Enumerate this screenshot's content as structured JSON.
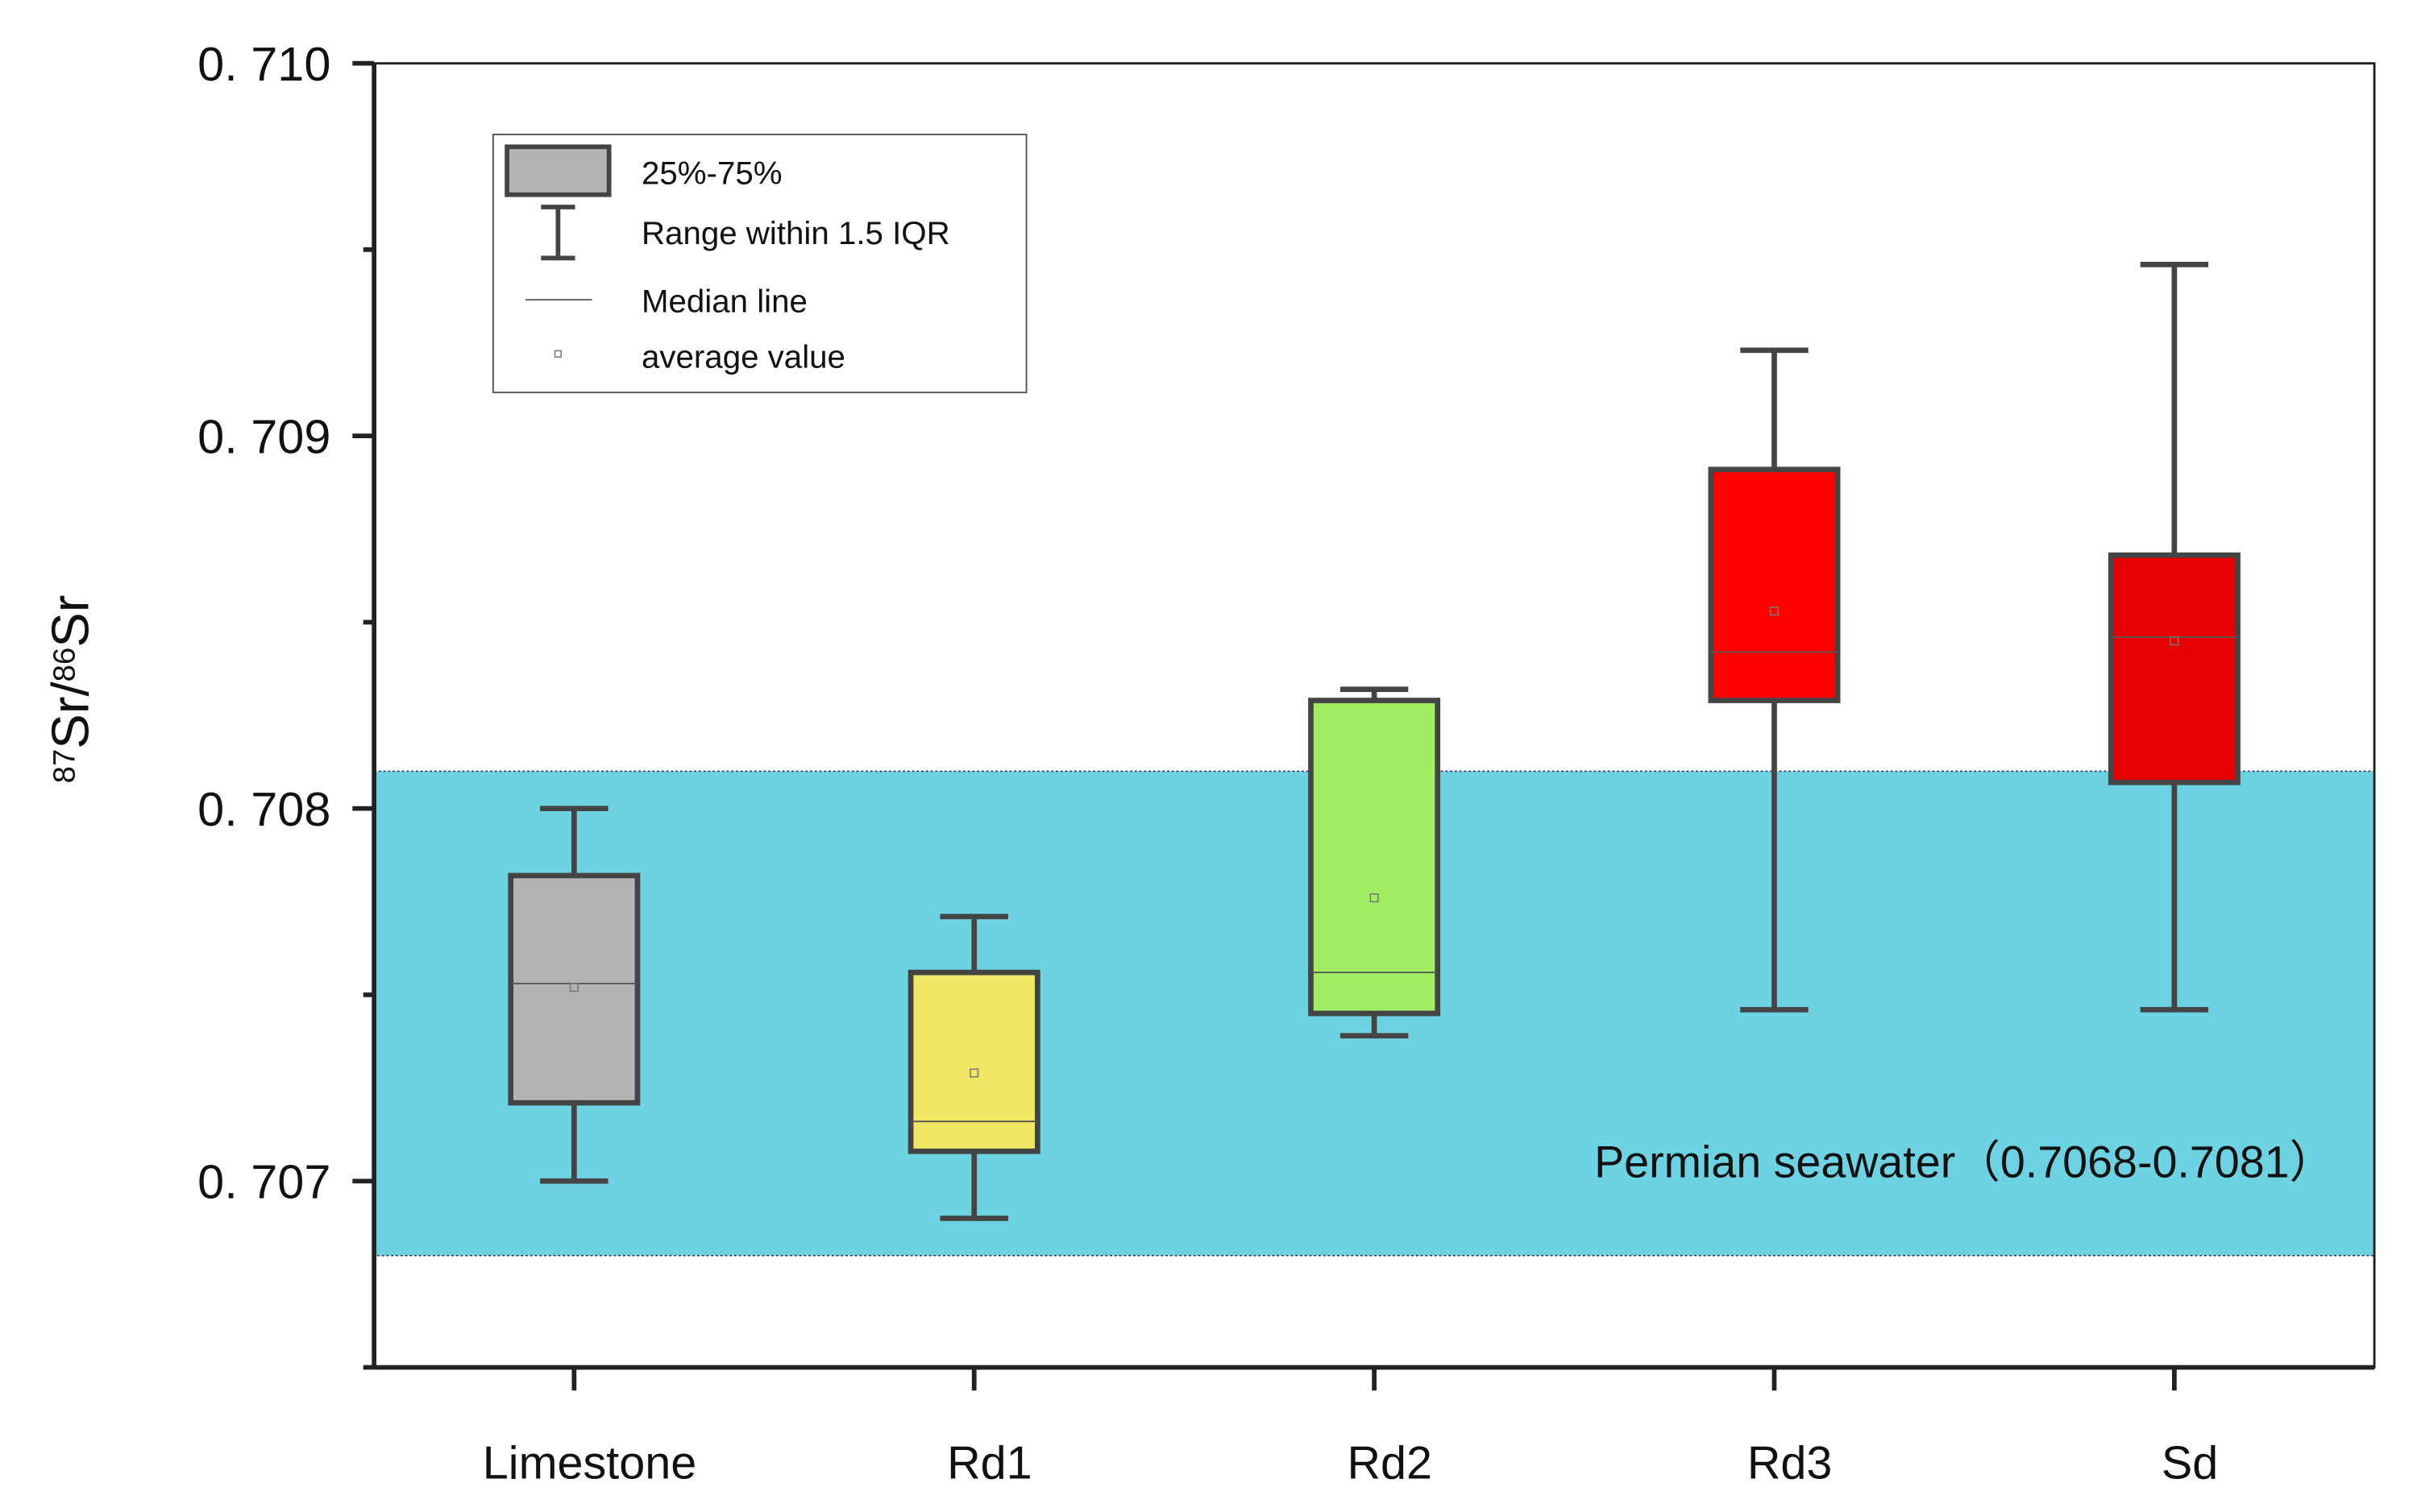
{
  "chart_data": {
    "type": "box",
    "ylabel_parts": [
      "87",
      "Sr/",
      "86",
      "Sr"
    ],
    "categories": [
      "Limestone",
      "Rd1",
      "Rd2",
      "Rd3",
      "Sd"
    ],
    "boxes": [
      {
        "whisker_low": 0.707,
        "q1": 0.70721,
        "median": 0.70753,
        "q3": 0.70782,
        "whisker_high": 0.708,
        "mean": 0.70752,
        "color": "#b3b3b3"
      },
      {
        "whisker_low": 0.7069,
        "q1": 0.70708,
        "median": 0.70716,
        "q3": 0.70756,
        "whisker_high": 0.70771,
        "mean": 0.70729,
        "color": "#f0e864"
      },
      {
        "whisker_low": 0.70739,
        "q1": 0.70745,
        "median": 0.70756,
        "q3": 0.70829,
        "whisker_high": 0.70832,
        "mean": 0.70776,
        "color": "#a2ee62"
      },
      {
        "whisker_low": 0.70746,
        "q1": 0.70829,
        "median": 0.70842,
        "q3": 0.70891,
        "whisker_high": 0.70923,
        "mean": 0.70853,
        "color": "#ff0000"
      },
      {
        "whisker_low": 0.70746,
        "q1": 0.70807,
        "median": 0.70846,
        "q3": 0.70868,
        "whisker_high": 0.70946,
        "mean": 0.70845,
        "color": "#e80000"
      }
    ],
    "band": {
      "range": [
        0.7068,
        0.7081
      ],
      "color": "#6dd3e3",
      "label": "Permian seawater（0.7068-0.7081）"
    },
    "ylim": [
      0.7065,
      0.71
    ],
    "yticks": [
      {
        "value": 0.707,
        "label": "0. 707"
      },
      {
        "value": 0.708,
        "label": "0. 708"
      },
      {
        "value": 0.709,
        "label": "0. 709"
      },
      {
        "value": 0.71,
        "label": "0. 710"
      }
    ],
    "yminorticks": [
      0.7065,
      0.7075,
      0.7085,
      0.7095
    ],
    "legend": {
      "box": "25%-75%",
      "whisker": "Range within 1.5 IQR",
      "median": "Median line",
      "mean": "average value"
    },
    "grid": false
  }
}
